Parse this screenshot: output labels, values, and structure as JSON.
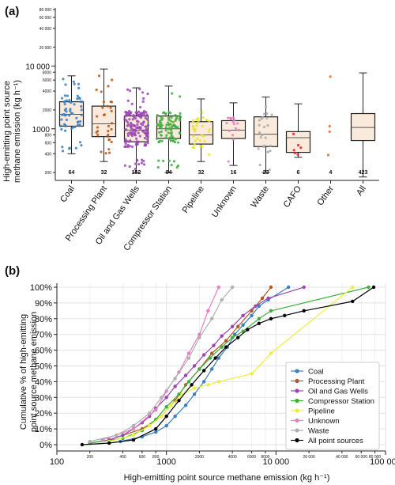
{
  "chart_data": [
    {
      "panel_label": "(a)",
      "type": "box",
      "ylabel_line1": "High-emitting point source",
      "ylabel_line2": "methane emission (kg h⁻¹)",
      "yscale": "log",
      "ylim": [
        150,
        85000
      ],
      "major_ticks": [
        {
          "v": 1000,
          "label": "1000"
        },
        {
          "v": 10000,
          "label": "10 000"
        }
      ],
      "minor_ticks": [
        {
          "v": 200,
          "label": "200"
        },
        {
          "v": 400,
          "label": "400"
        },
        {
          "v": 600,
          "label": "600"
        },
        {
          "v": 800,
          "label": "800"
        },
        {
          "v": 2000,
          "label": "2000"
        },
        {
          "v": 4000,
          "label": "4000"
        },
        {
          "v": 6000,
          "label": "6000"
        },
        {
          "v": 8000,
          "label": "8000"
        },
        {
          "v": 20000,
          "label": "20 000"
        },
        {
          "v": 40000,
          "label": "40 000"
        },
        {
          "v": 60000,
          "label": "60 000"
        },
        {
          "v": 80000,
          "label": "80 000"
        }
      ],
      "categories": [
        {
          "name": "Coal",
          "n": "64",
          "color": "#3a7fc1",
          "q1": 1100,
          "median": 1700,
          "q3": 2700,
          "whislo": 400,
          "whishi": 7000
        },
        {
          "name": "Processing Plant",
          "n": "32",
          "color": "#b5581d",
          "q1": 750,
          "median": 1200,
          "q3": 2300,
          "whislo": 300,
          "whishi": 9000
        },
        {
          "name": "Oil and Gas Wells",
          "n": "152",
          "color": "#9b45b4",
          "q1": 620,
          "median": 950,
          "q3": 1600,
          "whislo": 200,
          "whishi": 4500
        },
        {
          "name": "Compressor Station",
          "n": "94",
          "color": "#3fae3f",
          "q1": 700,
          "median": 1000,
          "q3": 1600,
          "whislo": 200,
          "whishi": 4800
        },
        {
          "name": "Pipeline",
          "n": "32",
          "color": "#e6e626",
          "q1": 570,
          "median": 800,
          "q3": 1300,
          "whislo": 300,
          "whishi": 3000
        },
        {
          "name": "Unknown",
          "n": "16",
          "color": "#e67fc0",
          "q1": 700,
          "median": 950,
          "q3": 1350,
          "whislo": 260,
          "whishi": 2600
        },
        {
          "name": "Waste",
          "n": "23",
          "color": "#a9a9a9",
          "q1": 520,
          "median": 820,
          "q3": 1550,
          "whislo": 200,
          "whishi": 3200
        },
        {
          "name": "CAFO",
          "n": "6",
          "color": "#d32020",
          "q1": 420,
          "median": 720,
          "q3": 900,
          "whislo": 350,
          "whishi": 2500
        },
        {
          "name": "Other",
          "n": "4",
          "color": "#e6691e",
          "q1": null,
          "median": null,
          "q3": null,
          "whislo": null,
          "whishi": null,
          "points": [
            380,
            900,
            1100,
            6800
          ]
        },
        {
          "name": "All",
          "n": "423",
          "color": "#000000",
          "q1": 650,
          "median": 1050,
          "q3": 1750,
          "whislo": 170,
          "whishi": 7800
        }
      ]
    },
    {
      "panel_label": "(b)",
      "type": "line",
      "xlabel": "High-emitting point source methane emission (kg h⁻¹)",
      "ylabel_line1": "Cumulative % of high-emitting",
      "ylabel_line2": "point source methane emission",
      "xscale": "log",
      "xlim": [
        100,
        100000
      ],
      "ylim": [
        0,
        100
      ],
      "x_major_ticks": [
        {
          "v": 100,
          "label": "100"
        },
        {
          "v": 1000,
          "label": "1000"
        },
        {
          "v": 10000,
          "label": "10 000"
        },
        {
          "v": 100000,
          "label": "100 000"
        }
      ],
      "x_minor_ticks": [
        {
          "v": 200,
          "label": "200"
        },
        {
          "v": 400,
          "label": "400"
        },
        {
          "v": 600,
          "label": "600"
        },
        {
          "v": 800,
          "label": "800"
        },
        {
          "v": 2000,
          "label": "2000"
        },
        {
          "v": 4000,
          "label": "4000"
        },
        {
          "v": 6000,
          "label": "6000"
        },
        {
          "v": 8000,
          "label": "8000"
        },
        {
          "v": 20000,
          "label": "20 000"
        },
        {
          "v": 40000,
          "label": "40 000"
        },
        {
          "v": 60000,
          "label": "60 000"
        },
        {
          "v": 80000,
          "label": "80 000"
        }
      ],
      "y_ticks": [
        {
          "v": 0,
          "label": "0%"
        },
        {
          "v": 10,
          "label": "10%"
        },
        {
          "v": 20,
          "label": "20%"
        },
        {
          "v": 30,
          "label": "30%"
        },
        {
          "v": 40,
          "label": "40%"
        },
        {
          "v": 50,
          "label": "50%"
        },
        {
          "v": 60,
          "label": "60%"
        },
        {
          "v": 70,
          "label": "70%"
        },
        {
          "v": 80,
          "label": "80%"
        },
        {
          "v": 90,
          "label": "90%"
        },
        {
          "v": 100,
          "label": "100%"
        }
      ],
      "legend_position": "lower-right",
      "series": [
        {
          "name": "Coal",
          "color": "#3a7fc1",
          "x": [
            380,
            600,
            800,
            1000,
            1200,
            1500,
            1800,
            2200,
            2600,
            3000,
            3600,
            4200,
            5000,
            6000,
            7000,
            8500,
            13000
          ],
          "y": [
            2,
            5,
            8,
            12,
            18,
            25,
            32,
            40,
            48,
            55,
            62,
            70,
            76,
            82,
            88,
            92,
            100
          ]
        },
        {
          "name": "Processing Plant",
          "color": "#b5581d",
          "x": [
            300,
            600,
            900,
            1200,
            1500,
            2000,
            2600,
            3500,
            4500,
            6000,
            7500,
            9000
          ],
          "y": [
            3,
            10,
            18,
            28,
            38,
            48,
            58,
            66,
            75,
            85,
            93,
            100
          ]
        },
        {
          "name": "Oil and Gas Wells",
          "color": "#9b45b4",
          "x": [
            200,
            300,
            400,
            500,
            600,
            700,
            800,
            1000,
            1200,
            1500,
            1800,
            2200,
            2700,
            3200,
            4000,
            5000,
            6500,
            8500,
            18000
          ],
          "y": [
            1,
            3,
            6,
            10,
            14,
            18,
            23,
            30,
            37,
            44,
            50,
            57,
            63,
            69,
            75,
            82,
            88,
            93,
            100
          ]
        },
        {
          "name": "Compressor Station",
          "color": "#3fae3f",
          "x": [
            200,
            400,
            600,
            800,
            1000,
            1300,
            1600,
            2000,
            2500,
            3200,
            4000,
            5000,
            7000,
            9000,
            70000
          ],
          "y": [
            1,
            4,
            9,
            16,
            24,
            32,
            40,
            48,
            55,
            62,
            68,
            72,
            80,
            85,
            100
          ]
        },
        {
          "name": "Pipeline",
          "color": "#f0f03a",
          "x": [
            300,
            500,
            700,
            900,
            1100,
            1400,
            1800,
            2400,
            3000,
            6000,
            9000,
            50000
          ],
          "y": [
            2,
            6,
            12,
            18,
            25,
            32,
            36,
            38,
            40,
            45,
            58,
            100
          ]
        },
        {
          "name": "Unknown",
          "color": "#e67fc0",
          "x": [
            260,
            500,
            800,
            1000,
            1300,
            1600,
            2000,
            2400,
            3000
          ],
          "y": [
            3,
            10,
            22,
            34,
            46,
            58,
            70,
            85,
            100
          ]
        },
        {
          "name": "Waste",
          "color": "#b0b0b0",
          "x": [
            200,
            350,
            500,
            700,
            900,
            1200,
            1600,
            2000,
            2600,
            3200,
            4000
          ],
          "y": [
            2,
            6,
            12,
            20,
            30,
            42,
            55,
            68,
            80,
            92,
            100
          ]
        },
        {
          "name": "All point sources",
          "color": "#000000",
          "x": [
            170,
            300,
            500,
            800,
            1000,
            1300,
            1700,
            2200,
            2800,
            3500,
            4500,
            5500,
            7000,
            9000,
            12000,
            18000,
            50000,
            78000
          ],
          "y": [
            0,
            1,
            3,
            10,
            18,
            28,
            38,
            47,
            55,
            62,
            68,
            73,
            77,
            80,
            82,
            85,
            91,
            100
          ]
        }
      ]
    }
  ]
}
